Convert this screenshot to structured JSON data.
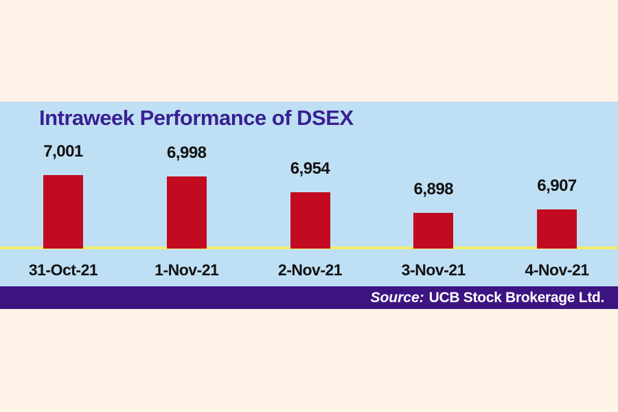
{
  "page": {
    "background": "#fdf3e6"
  },
  "chart": {
    "title": "Intraweek Performance of DSEX",
    "title_color": "#3a2092",
    "panel_color": "#bfe0f4",
    "bar_color": "#c20b20",
    "baseline_color": "#f0ee6c",
    "label_color": "#111111"
  },
  "footer": {
    "background": "#3d1482",
    "text_color": "#ffffff",
    "source_label": "Source:",
    "source_text": "UCB Stock Brokerage Ltd."
  },
  "chart_data": {
    "type": "bar",
    "categories": [
      "31-Oct-21",
      "1-Nov-21",
      "2-Nov-21",
      "3-Nov-21",
      "4-Nov-21"
    ],
    "values": [
      7001,
      6998,
      6954,
      6898,
      6907
    ],
    "value_labels": [
      "7,001",
      "6,998",
      "6,954",
      "6,898",
      "6,907"
    ],
    "title": "Intraweek Performance of DSEX",
    "xlabel": "",
    "ylabel": "",
    "ylim": [
      6800,
      7010
    ],
    "grid": false,
    "legend": false,
    "bar_color": "#c20b20",
    "baseline_value": 6800
  }
}
